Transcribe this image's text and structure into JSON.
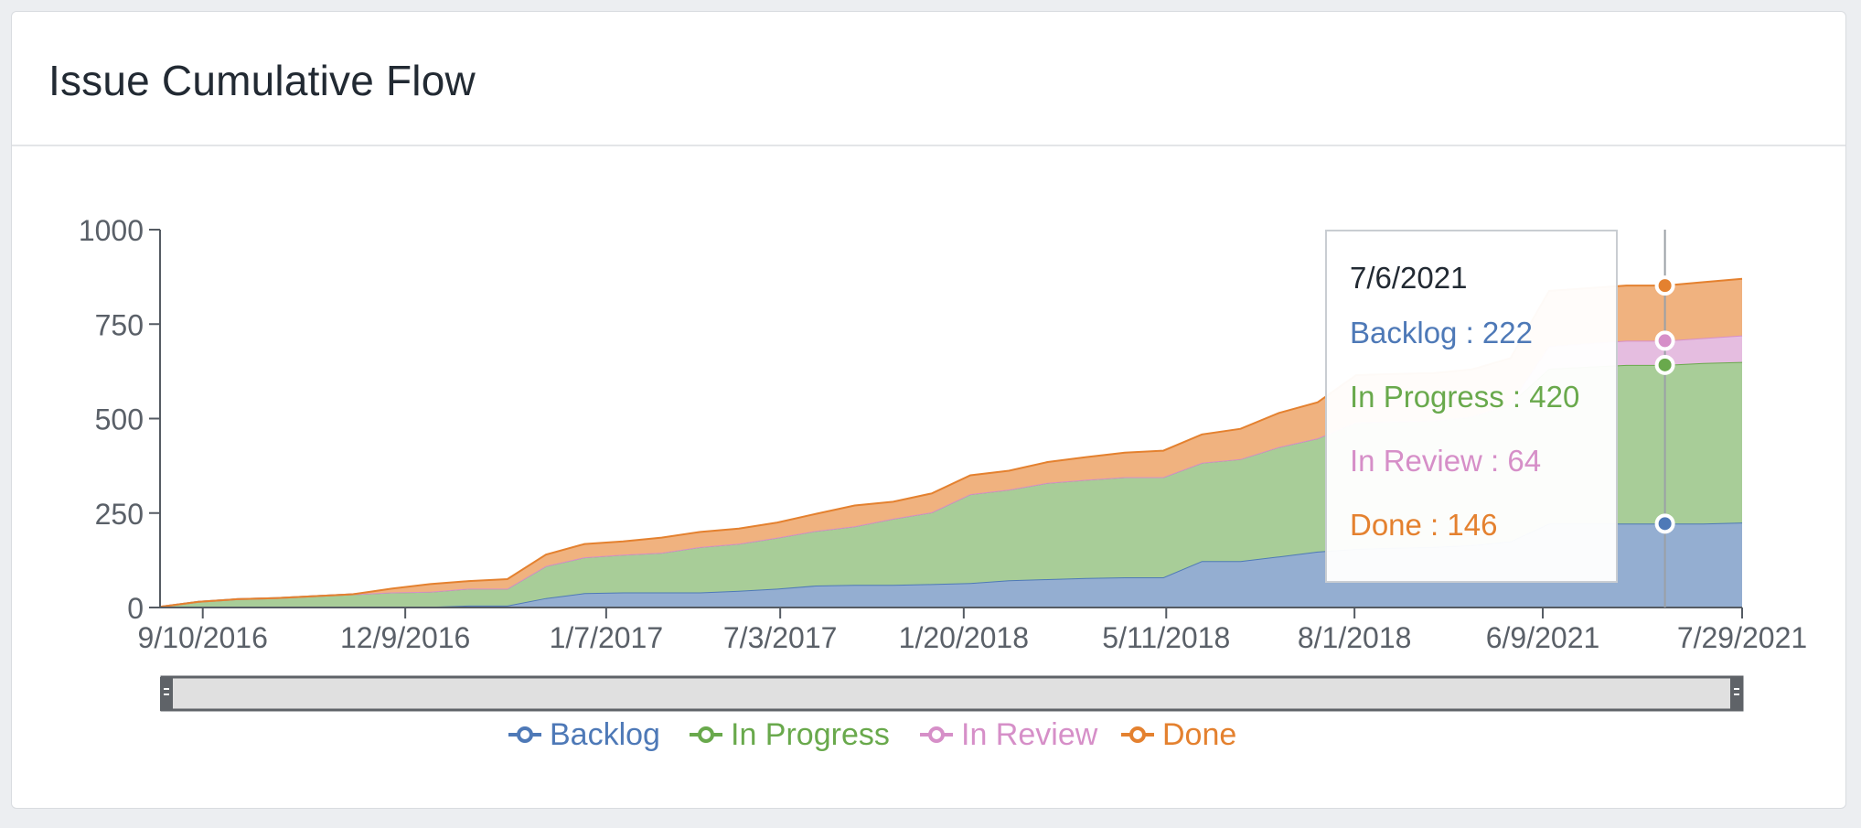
{
  "header": {
    "title": "Issue Cumulative Flow"
  },
  "tooltip": {
    "date": "7/6/2021",
    "lines": [
      {
        "key": "backlog",
        "text": "Backlog : 222"
      },
      {
        "key": "inprogress",
        "text": "In Progress : 420"
      },
      {
        "key": "inreview",
        "text": "In Review : 64"
      },
      {
        "key": "done",
        "text": "Done : 146"
      }
    ]
  },
  "chart_data": {
    "type": "area",
    "stacked": true,
    "title": "Issue Cumulative Flow",
    "xlabel": "",
    "ylabel": "",
    "ylim": [
      0,
      1000
    ],
    "yticks": [
      0,
      250,
      500,
      750,
      1000
    ],
    "xticks": [
      "9/10/2016",
      "12/9/2016",
      "1/7/2017",
      "7/3/2017",
      "1/20/2018",
      "5/11/2018",
      "8/1/2018",
      "6/9/2021",
      "7/29/2021"
    ],
    "x": [
      "2016-08-16",
      "2016-08-31",
      "2016-09-15",
      "2016-10-02",
      "2016-10-18",
      "2016-11-02",
      "2016-11-14",
      "2016-11-28",
      "2016-12-08",
      "2016-12-13",
      "2016-12-22",
      "2017-01-01",
      "2017-01-10",
      "2017-01-20",
      "2017-02-05",
      "2017-03-01",
      "2017-04-01",
      "2017-05-01",
      "2017-06-01",
      "2017-07-01",
      "2017-08-01",
      "2017-09-01",
      "2017-10-01",
      "2017-11-01",
      "2017-12-01",
      "2018-01-01",
      "2018-01-20",
      "2018-02-10",
      "2018-03-01",
      "2018-04-01",
      "2018-04-20",
      "2018-05-11",
      "2018-06-01",
      "2018-06-20",
      "2018-07-05",
      "2018-08-01",
      "2021-05-20",
      "2021-06-09",
      "2021-06-20",
      "2021-07-06",
      "2021-07-15",
      "2021-07-29"
    ],
    "series": [
      {
        "name": "Backlog",
        "color": "#4e79b7",
        "fill": "#94aed1",
        "values": [
          0,
          0,
          0,
          0,
          0,
          0,
          0,
          2,
          5,
          5,
          25,
          38,
          40,
          40,
          40,
          44,
          50,
          58,
          60,
          60,
          62,
          65,
          72,
          75,
          78,
          80,
          80,
          123,
          123,
          135,
          148,
          155,
          158,
          160,
          165,
          175,
          222,
          222,
          222,
          222,
          222,
          225
        ]
      },
      {
        "name": "In Progress",
        "color": "#69a94c",
        "fill": "#a8cd98",
        "values": [
          2,
          15,
          22,
          25,
          30,
          35,
          40,
          40,
          45,
          45,
          85,
          95,
          100,
          105,
          120,
          125,
          135,
          145,
          155,
          175,
          190,
          235,
          240,
          255,
          260,
          265,
          265,
          260,
          270,
          290,
          300,
          335,
          335,
          335,
          340,
          365,
          410,
          415,
          420,
          420,
          425,
          425
        ]
      },
      {
        "name": "In Review",
        "color": "#d68fc8",
        "fill": "#e5bde0",
        "values": [
          0,
          0,
          0,
          0,
          0,
          0,
          0,
          0,
          0,
          0,
          0,
          0,
          0,
          0,
          0,
          0,
          0,
          0,
          0,
          0,
          0,
          0,
          0,
          0,
          0,
          0,
          0,
          0,
          0,
          0,
          0,
          0,
          0,
          0,
          0,
          0,
          60,
          62,
          64,
          64,
          66,
          70
        ]
      },
      {
        "name": "Done",
        "color": "#e4812f",
        "fill": "#f0b27f",
        "values": [
          0,
          0,
          0,
          0,
          0,
          0,
          10,
          20,
          20,
          25,
          30,
          35,
          35,
          40,
          40,
          40,
          40,
          45,
          55,
          45,
          50,
          50,
          50,
          55,
          60,
          65,
          70,
          75,
          80,
          90,
          95,
          125,
          125,
          125,
          125,
          120,
          146,
          146,
          146,
          146,
          148,
          150
        ]
      }
    ],
    "hover": {
      "date": "7/6/2021",
      "index": 39
    },
    "legend": {
      "position": "bottom",
      "items": [
        "Backlog",
        "In Progress",
        "In Review",
        "Done"
      ]
    },
    "grid": false,
    "range_slider": true
  }
}
